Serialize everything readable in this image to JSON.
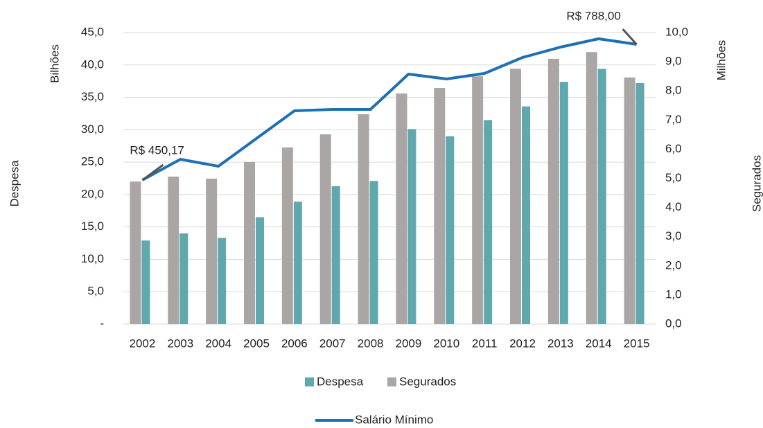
{
  "chart_data": {
    "type": "bar",
    "categories": [
      "2002",
      "2003",
      "2004",
      "2005",
      "2006",
      "2007",
      "2008",
      "2009",
      "2010",
      "2011",
      "2012",
      "2013",
      "2014",
      "2015"
    ],
    "series": [
      {
        "name": "Despesa",
        "color": "#5fa8ad",
        "type": "bar",
        "axis": "y",
        "values": [
          12.9,
          14.0,
          13.3,
          16.5,
          18.9,
          21.3,
          22.1,
          30.1,
          29.0,
          31.5,
          33.6,
          37.4,
          39.4,
          37.2
        ]
      },
      {
        "name": "Segurados",
        "color": "#aaa6a5",
        "type": "bar",
        "axis": "y2",
        "values": [
          4.89,
          5.06,
          4.99,
          5.56,
          6.06,
          6.51,
          7.2,
          7.91,
          8.1,
          8.5,
          8.76,
          9.1,
          9.33,
          8.46
        ]
      },
      {
        "name": "Salário Mínimo",
        "color": "#1f6fb4",
        "type": "line",
        "axis": "y3",
        "values": [
          450.17,
          501.9,
          484.6,
          553.6,
          622.5,
          626.0,
          626.0,
          713.9,
          701.8,
          715.6,
          755.3,
          781.1,
          801.8,
          788.0
        ],
        "value_labels": [
          "R$ 450,17",
          null,
          null,
          null,
          null,
          null,
          null,
          null,
          null,
          null,
          null,
          null,
          null,
          "R$ 788,00"
        ]
      }
    ],
    "y_label": "Despesa",
    "y_unit": "Bilhões",
    "y2_label": "Segurados",
    "y2_unit": "Milhões",
    "ylim": [
      0,
      45
    ],
    "yticks": [
      {
        "value": 0,
        "label": "-"
      },
      {
        "value": 5,
        "label": "5,0"
      },
      {
        "value": 10,
        "label": "10,0"
      },
      {
        "value": 15,
        "label": "15,0"
      },
      {
        "value": 20,
        "label": "20,0"
      },
      {
        "value": 25,
        "label": "25,0"
      },
      {
        "value": 30,
        "label": "30,0"
      },
      {
        "value": 35,
        "label": "35,0"
      },
      {
        "value": 40,
        "label": "40,0"
      },
      {
        "value": 45,
        "label": "45,0"
      }
    ],
    "y2lim": [
      0,
      10
    ],
    "y2ticks": [
      {
        "value": 0,
        "label": "0,0"
      },
      {
        "value": 1,
        "label": "1,0"
      },
      {
        "value": 2,
        "label": "2,0"
      },
      {
        "value": 3,
        "label": "3,0"
      },
      {
        "value": 4,
        "label": "4,0"
      },
      {
        "value": 5,
        "label": "5,0"
      },
      {
        "value": 6,
        "label": "6,0"
      },
      {
        "value": 7,
        "label": "7,0"
      },
      {
        "value": 8,
        "label": "8,0"
      },
      {
        "value": 9,
        "label": "9,0"
      },
      {
        "value": 10,
        "label": "10,0"
      }
    ],
    "y3lim": [
      91.7,
      817.3
    ],
    "grid": true
  }
}
